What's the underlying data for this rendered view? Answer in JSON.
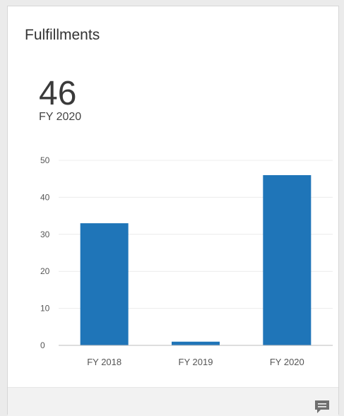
{
  "card": {
    "title": "Fulfillments",
    "kpi_value": "46",
    "kpi_label": "FY 2020"
  },
  "colors": {
    "bar": "#1f75b8",
    "grid": "#ececec",
    "axis": "#bdbdbd",
    "tick_text": "#555555"
  },
  "icons": {
    "footer": "comment-icon"
  },
  "chart_data": {
    "type": "bar",
    "categories": [
      "FY 2018",
      "FY 2019",
      "FY 2020"
    ],
    "values": [
      33,
      1,
      46
    ],
    "yticks": [
      "0",
      "10",
      "20",
      "30",
      "40",
      "50"
    ],
    "ylim": [
      0,
      50
    ],
    "grid": true,
    "legend": "none"
  }
}
